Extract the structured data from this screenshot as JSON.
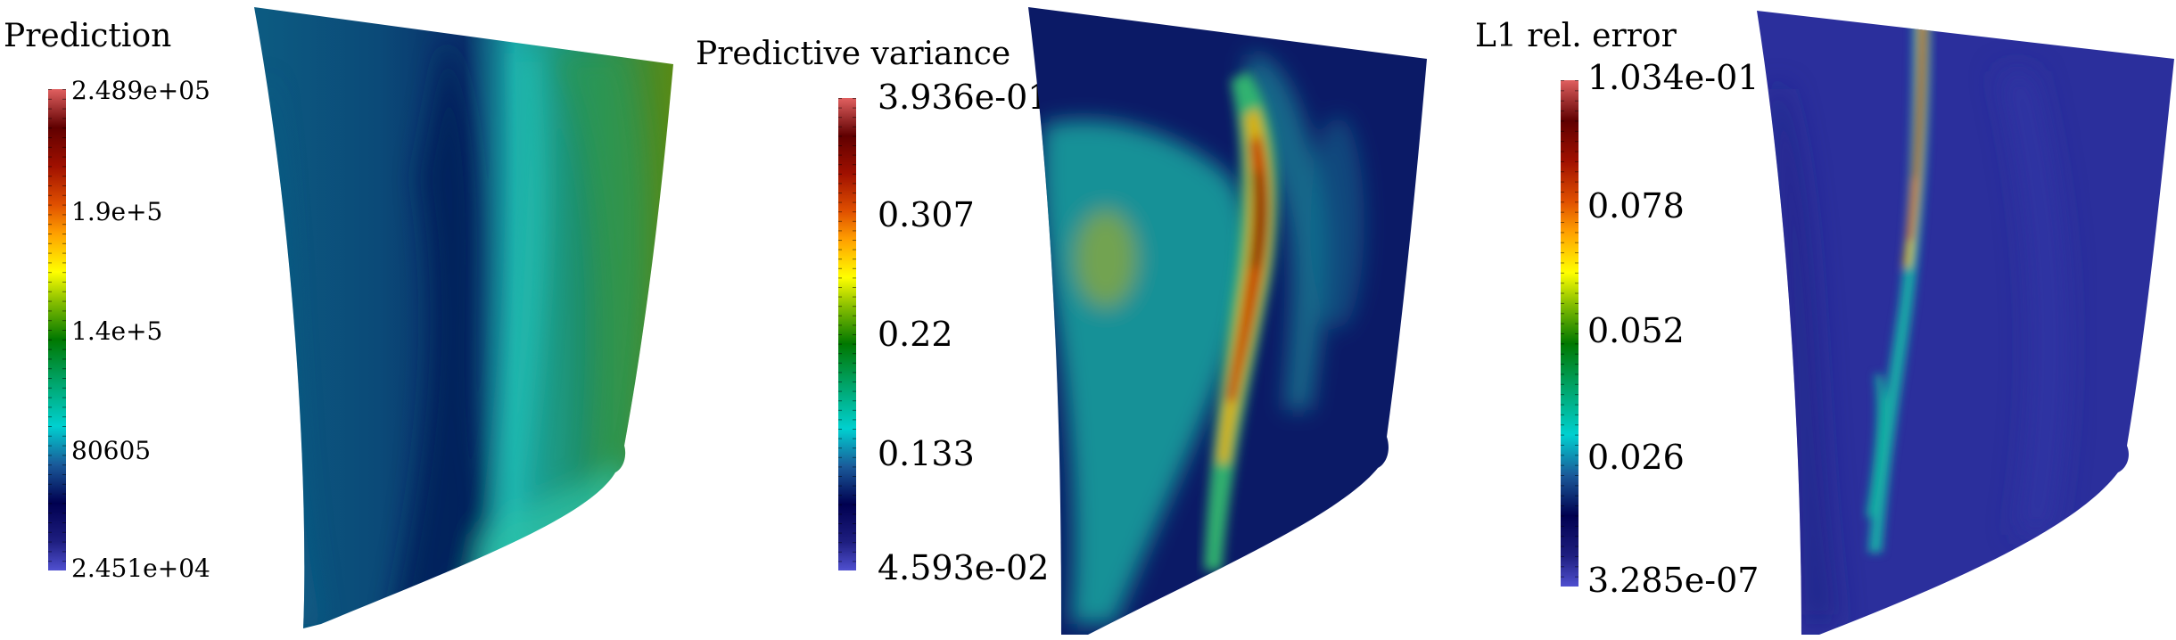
{
  "panels": [
    {
      "title": "Prediction",
      "ticks": [
        "2.489e+05",
        "1.9e+5",
        "1.4e+5",
        "80605",
        "2.451e+04"
      ]
    },
    {
      "title": "Predictive variance",
      "ticks": [
        "3.936e-01",
        "0.307",
        "0.22",
        "0.133",
        "4.593e-02"
      ]
    },
    {
      "title": "L1 rel. error",
      "ticks": [
        "1.034e-01",
        "0.078",
        "0.052",
        "0.026",
        "3.285e-07"
      ]
    }
  ],
  "colors": {
    "colormap": [
      "#5050d0",
      "#1e1e80",
      "#000050",
      "#1a5a9a",
      "#00d0d0",
      "#00a060",
      "#007800",
      "#8ac000",
      "#ffff00",
      "#ffa000",
      "#e05000",
      "#a01000",
      "#600000",
      "#e06060"
    ],
    "blade_base": "#0c4c78",
    "variance_base": "#0b1a66",
    "error_base": "#2b2f9c"
  }
}
